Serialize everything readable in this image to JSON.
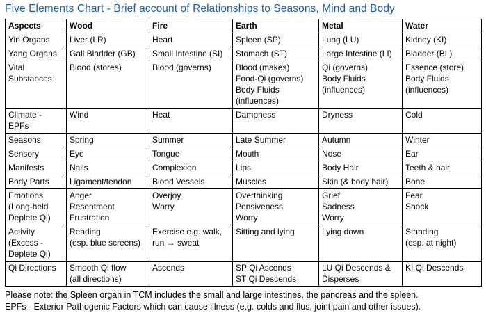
{
  "title": "Five Elements Chart - Brief account of Relationships to Seasons, Mind and Body",
  "colors": {
    "title": "#1F5C9E",
    "border": "#000000",
    "background": "#FFFFFF",
    "text": "#000000"
  },
  "table": {
    "headers": [
      "Aspects",
      "Wood",
      "Fire",
      "Earth",
      "Metal",
      "Water"
    ],
    "rows": [
      {
        "label": "Yin Organs",
        "cells": [
          "Liver (LR)",
          "Heart",
          "Spleen (SP)",
          "Lung (LU)",
          "Kidney (KI)"
        ]
      },
      {
        "label": "Yang Organs",
        "cells": [
          "Gall Bladder (GB)",
          "Small Intestine (SI)",
          "Stomach (ST)",
          "Large Intestine (LI)",
          "Bladder (BL)"
        ]
      },
      {
        "label": "Vital\nSubstances",
        "cells": [
          "Blood (stores)",
          "Blood (governs)",
          "Blood (makes)\nFood-Qi (governs)\nBody Fluids\n(influences)",
          "Qi (governs)\nBody Fluids\n(influences)",
          "Essence (store)\nBody Fluids\n(influences)"
        ]
      },
      {
        "label": "Climate -\nEPFs",
        "cells": [
          "Wind",
          "Heat",
          "Dampness",
          "Dryness",
          "Cold"
        ]
      },
      {
        "label": "Seasons",
        "cells": [
          "Spring",
          "Summer",
          "Late Summer",
          "Autumn",
          "Winter"
        ]
      },
      {
        "label": "Sensory",
        "cells": [
          "Eye",
          "Tongue",
          "Mouth",
          "Nose",
          "Ear"
        ]
      },
      {
        "label": "Manifests",
        "cells": [
          "Nails",
          "Complexion",
          "Lips",
          "Body Hair",
          "Teeth & hair"
        ]
      },
      {
        "label": "Body Parts",
        "cells": [
          "Ligament/tendon",
          "Blood Vessels",
          "Muscles",
          "Skin (& body hair)",
          "Bone"
        ]
      },
      {
        "label": "Emotions\n(Long-held\nDeplete Qi)",
        "cells": [
          "Anger\nResentment\nFrustration",
          "Overjoy\nWorry",
          "Overthinking\nPensiveness\nWorry",
          "Grief\nSadness\nWorry",
          "Fear\nShock"
        ]
      },
      {
        "label": "Activity\n(Excess -\nDeplete Qi)",
        "cells": [
          "Reading\n(esp. blue screens)",
          "Exercise e.g. walk,\nrun → sweat",
          "Sitting and lying",
          "Lying down",
          "Standing\n(esp. at night)"
        ]
      },
      {
        "label": "Qi Directions",
        "cells": [
          "Smooth Qi flow\n(all directions)",
          "Ascends",
          "SP Qi Ascends\nST Qi Descends",
          "LU Qi Descends &\nDisperses",
          "KI Qi Descends"
        ]
      }
    ]
  },
  "notes": [
    "Please note: the Spleen organ in TCM includes the small and large intestines, the pancreas and the spleen.",
    "EPFs - Exterior Pathogenic Factors which can cause illness (e.g. colds and flus, joint pain and other issues)."
  ]
}
